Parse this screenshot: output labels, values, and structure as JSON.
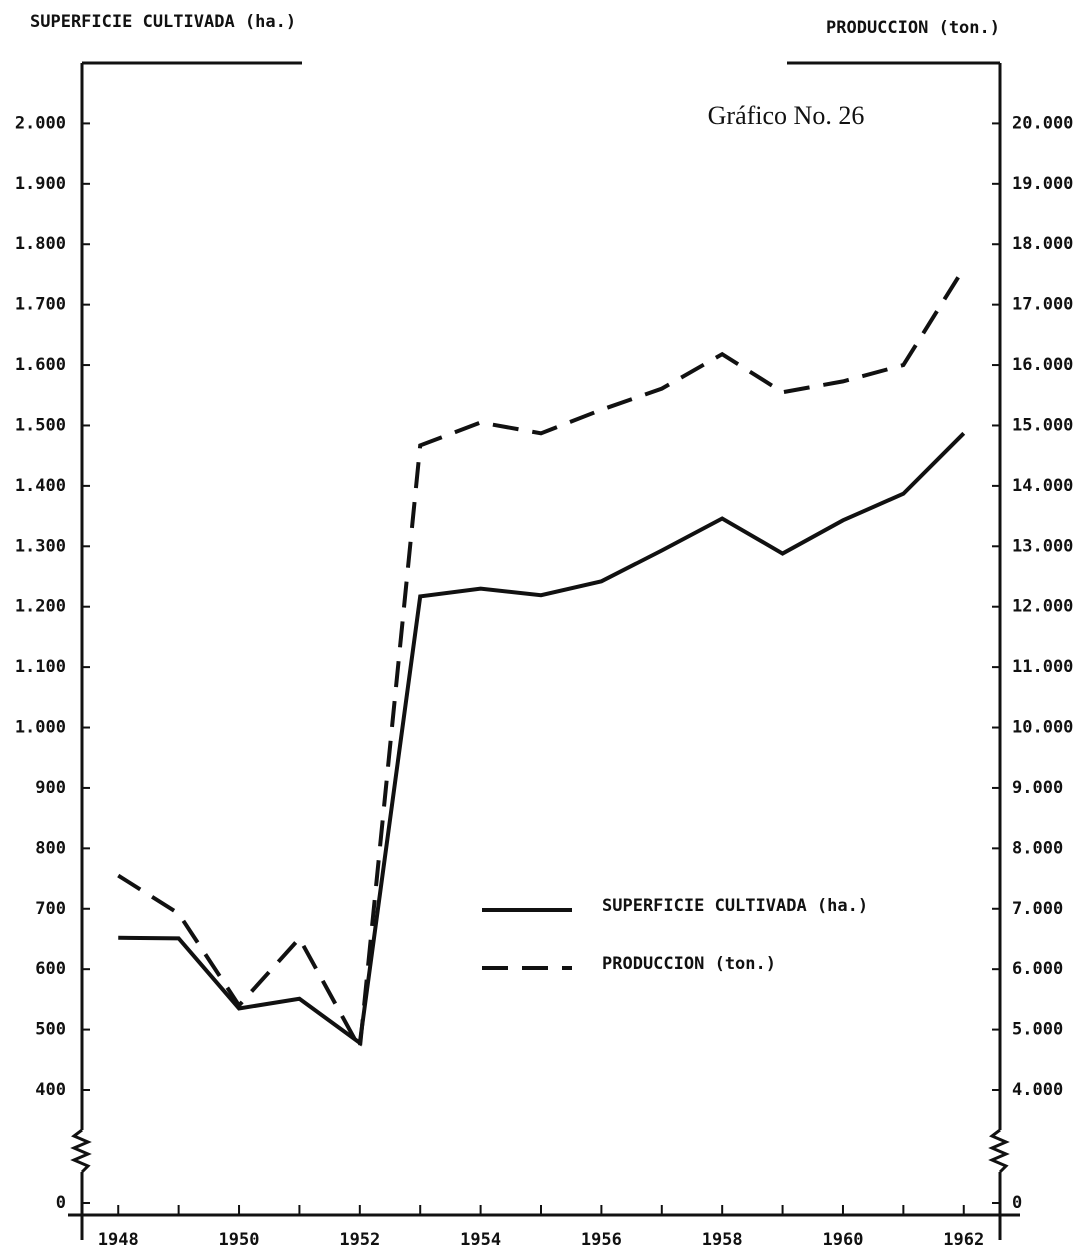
{
  "chart_data": {
    "type": "line",
    "title": "Gráfico No. 26",
    "y_label": "SUPERFICIE CULTIVADA (ha.)",
    "y2_label": "PRODUCCION (ton.)",
    "x": [
      1948,
      1949,
      1950,
      1951,
      1952,
      1953,
      1954,
      1955,
      1956,
      1957,
      1958,
      1959,
      1960,
      1961,
      1962
    ],
    "xlim": [
      1947.4,
      1962.6
    ],
    "xticks": [
      1948,
      1950,
      1952,
      1954,
      1956,
      1958,
      1960,
      1962
    ],
    "xminorticks": [
      1949,
      1951,
      1953,
      1955,
      1957,
      1959,
      1961
    ],
    "ylim": [
      0,
      2100
    ],
    "ybreak": 400,
    "yticks": [
      0,
      400,
      500,
      600,
      700,
      800,
      900,
      {
        "value": 1000,
        "label": "1.000"
      },
      {
        "value": 1100,
        "label": "1.100"
      },
      {
        "value": 1200,
        "label": "1.200"
      },
      {
        "value": 1300,
        "label": "1.300"
      },
      {
        "value": 1400,
        "label": "1.400"
      },
      {
        "value": 1500,
        "label": "1.500"
      },
      {
        "value": 1600,
        "label": "1.600"
      },
      {
        "value": 1700,
        "label": "1.700"
      },
      {
        "value": 1800,
        "label": "1.800"
      },
      {
        "value": 1900,
        "label": "1.900"
      },
      {
        "value": 2000,
        "label": "2.000"
      }
    ],
    "y2lim": [
      0,
      21000
    ],
    "y2break": 4000,
    "y2ticks": [
      0,
      {
        "value": 4000,
        "label": "4.000"
      },
      {
        "value": 5000,
        "label": "5.000"
      },
      {
        "value": 6000,
        "label": "6.000"
      },
      {
        "value": 7000,
        "label": "7.000"
      },
      {
        "value": 8000,
        "label": "8.000"
      },
      {
        "value": 9000,
        "label": "9.000"
      },
      {
        "value": 10000,
        "label": "10.000"
      },
      {
        "value": 11000,
        "label": "11.000"
      },
      {
        "value": 12000,
        "label": "12.000"
      },
      {
        "value": 13000,
        "label": "13.000"
      },
      {
        "value": 14000,
        "label": "14.000"
      },
      {
        "value": 15000,
        "label": "15.000"
      },
      {
        "value": 16000,
        "label": "16.000"
      },
      {
        "value": 17000,
        "label": "17.000"
      },
      {
        "value": 18000,
        "label": "18.000"
      },
      {
        "value": 19000,
        "label": "19.000"
      },
      {
        "value": 20000,
        "label": "20.000"
      }
    ],
    "series": [
      {
        "name": "SUPERFICIE CULTIVADA (ha.)",
        "color": "#111111",
        "dash": false,
        "values": [
          652,
          651,
          535,
          551,
          478,
          1217,
          1230,
          1219,
          1242,
          1293,
          1346,
          1288,
          1343,
          1387,
          1487
        ]
      },
      {
        "name": "PRODUCCION (ton.)",
        "color": "#111111",
        "dash": true,
        "axis": "y2",
        "values": [
          7550,
          6920,
          5400,
          6510,
          4690,
          14670,
          15050,
          14870,
          15260,
          15610,
          16180,
          15550,
          15730,
          16000,
          17600
        ]
      }
    ]
  }
}
